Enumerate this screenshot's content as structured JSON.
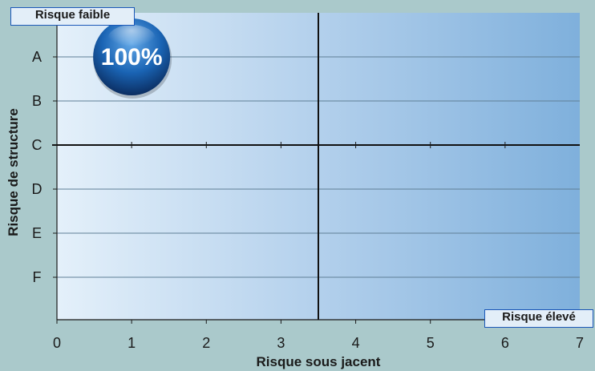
{
  "chart_data": {
    "type": "scatter",
    "xlabel": "Risque sous jacent",
    "ylabel": "Risque de structure",
    "x_ticks": [
      "0",
      "1",
      "2",
      "3",
      "4",
      "5",
      "6",
      "7"
    ],
    "y_categories": [
      "A",
      "B",
      "C",
      "D",
      "E",
      "F"
    ],
    "xlim": [
      0,
      7
    ],
    "quadrant_dividers": {
      "x": 3.5,
      "y_between": [
        "C",
        "D"
      ]
    },
    "corner_labels": {
      "low": "Risque faible",
      "high": "Risque élevé"
    },
    "points": [
      {
        "x": 1,
        "y": "A",
        "label": "100%",
        "color": "#1a64b4"
      }
    ],
    "colors": {
      "background": "#aac9cb",
      "plot_light": "#e4f0fa",
      "plot_dark": "#7fb0dc",
      "tag_border": "#1b57b8"
    },
    "grid": true
  }
}
